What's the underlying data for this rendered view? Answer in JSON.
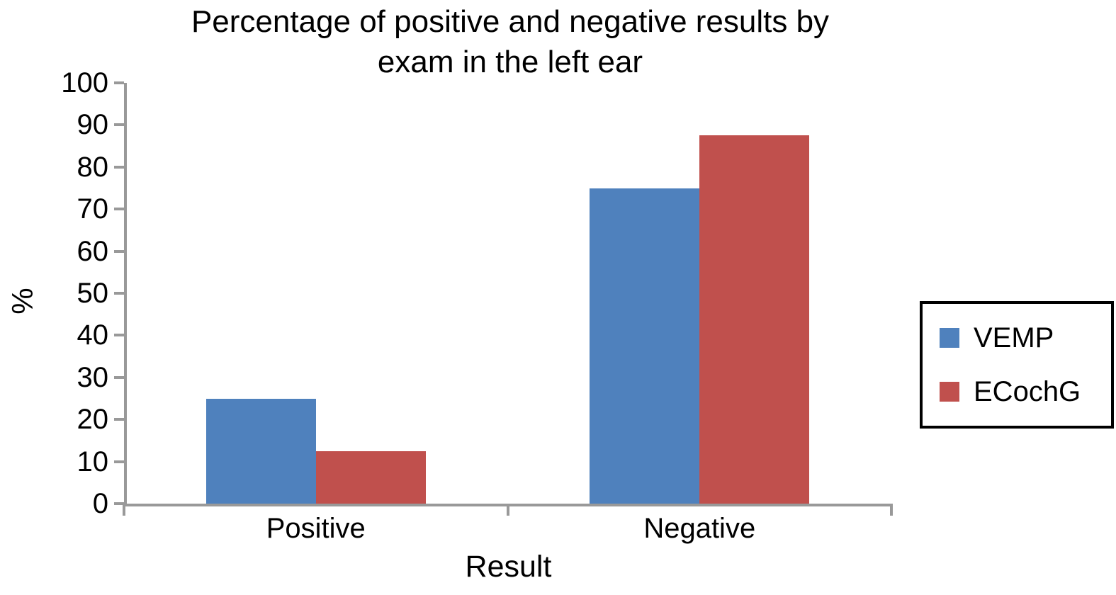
{
  "chart_data": {
    "type": "bar",
    "title": "Percentage of positive and negative results by exam in the left ear",
    "title_lines": [
      "Percentage of positive and negative results by",
      "exam in the left ear"
    ],
    "categories": [
      "Positive",
      "Negative"
    ],
    "series": [
      {
        "name": "VEMP",
        "color": "#4F81BD",
        "values": [
          25,
          75
        ]
      },
      {
        "name": "ECochG",
        "color": "#C0504D",
        "values": [
          12.5,
          87.5
        ]
      }
    ],
    "xlabel": "Result",
    "ylabel": "%",
    "ylim": [
      0,
      100
    ],
    "yticks": [
      0,
      10,
      20,
      30,
      40,
      50,
      60,
      70,
      80,
      90,
      100
    ],
    "grid": false,
    "legend_position": "right",
    "axis_color": "#999999",
    "text_color": "#000000",
    "background": "#FFFFFF"
  }
}
